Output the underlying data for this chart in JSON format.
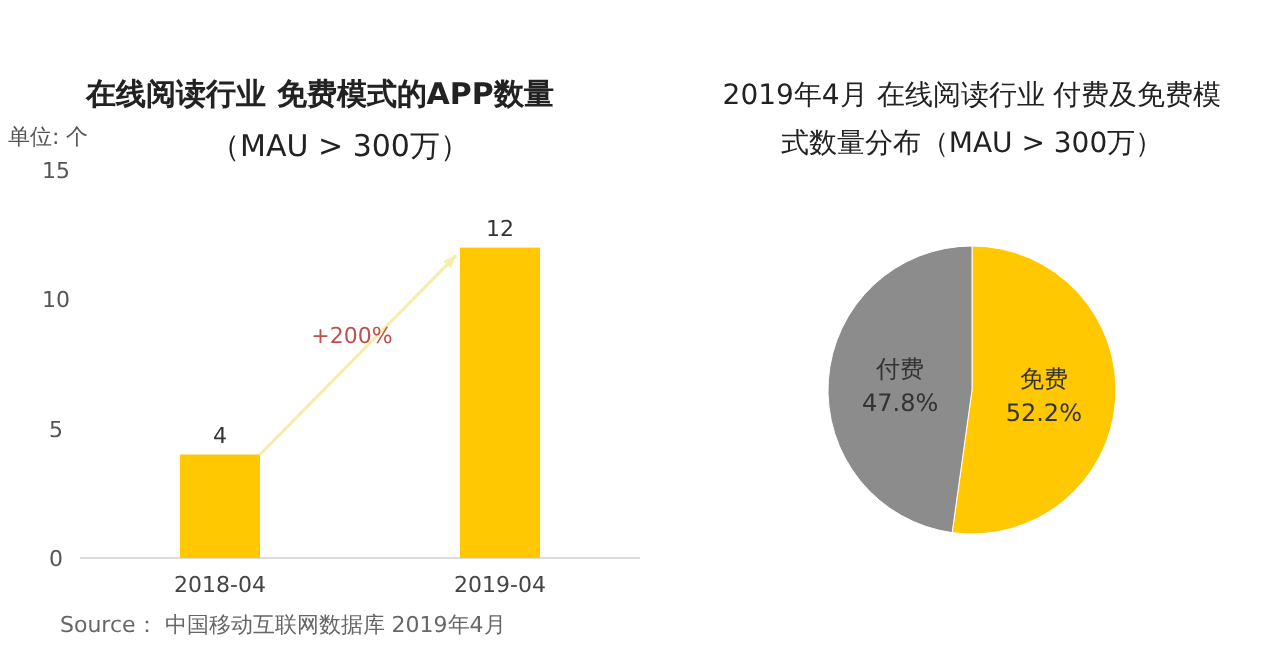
{
  "chart_data": [
    {
      "type": "bar",
      "title": "在线阅读行业 免费模式的APP数量",
      "subtitle": "（MAU > 300万）",
      "ylabel": "单位: 个",
      "categories": [
        "2018-04",
        "2019-04"
      ],
      "values": [
        4,
        12
      ],
      "color": "#ffc800",
      "data_labels": true,
      "ylim": [
        0,
        15
      ],
      "yticks": [
        0,
        5,
        10,
        15
      ],
      "annotations": [
        {
          "text": "+200%"
        },
        "Source： 中国移动互联网数据库 2019年4月"
      ]
    },
    {
      "type": "pie",
      "title": "2019年4月 在线阅读行业 付费及免费模式数量分布（MAU > 300万）",
      "categories": [
        "免费",
        "付费"
      ],
      "values": [
        52.2,
        47.8
      ],
      "colors": [
        "#ffc800",
        "#8c8c8c"
      ],
      "value_labels": [
        "52.2%",
        "47.8%"
      ]
    }
  ]
}
